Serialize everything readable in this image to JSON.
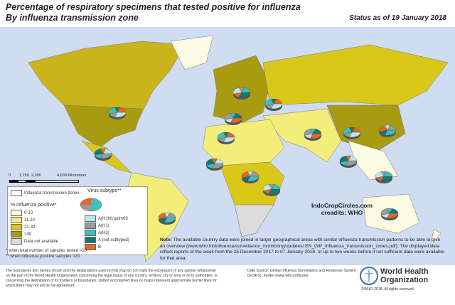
{
  "header": {
    "title_line1": "Percentage of respiratory specimens that tested positive for influenza",
    "title_line2": "By influenza transmission zone",
    "status": "Status as of 19 January 2018"
  },
  "scale": {
    "labels": [
      "0",
      "1,150",
      "2,300",
      "4,600 Kilometers"
    ]
  },
  "legend": {
    "zone_label": "Influenza transmission zones",
    "positive_title": "% influenza positive*",
    "classes": [
      {
        "label": "0-10",
        "color": "#fbfbe3"
      },
      {
        "label": "11-20",
        "color": "#f3ee7a"
      },
      {
        "label": "21-30",
        "color": "#d9c81a"
      },
      {
        "label": ">30",
        "color": "#a99b10"
      },
      {
        "label": "Data not available",
        "color": "#dcdcdc"
      }
    ],
    "subtype_title": "Virus subtype**",
    "subtypes": [
      {
        "label": "A(H1N1)pdm09",
        "color": "#b8e8ec"
      },
      {
        "label": "A(H1)",
        "color": "#9a9a9a"
      },
      {
        "label": "A(H3)",
        "color": "#3fc0c0"
      },
      {
        "label": "A (not subtyped)",
        "color": "#137a72"
      },
      {
        "label": "B",
        "color": "#e0682a"
      }
    ]
  },
  "footnotes": [
    "* when total number of samples tested >10",
    "** when influenza positive samples >20"
  ],
  "credit": {
    "line1": "IndoCropCircles.com",
    "line2": "creadits: WHO"
  },
  "note": {
    "label": "Note:",
    "text": "The available country data were joined in larger geographical areas with similar influenza transmission patterns to be able to give an overview (www.who.int/influenza/surveillance_monitoring/updates/ EN_GIP_Influenza_transmission_zones.pdf). The displayed data reflect reports of the week from the 25 December 2017 to 07 January 2018, or up to two weeks before if not sufficient data were available for that area."
  },
  "disclaimer": "The boundaries and names shown and the designations used on this map do not imply the expression of any opinion whatsoever on the part of the World Health Organization concerning the legal status of any country, territory, city or area or of its authorities, or concerning the delimitation of its frontiers or boundaries. Dotted and dashed lines on maps represent approximate border lines for which there may not yet be full agreement.",
  "source": "Data Source: Global Influenza Surveillance and Response System (GISRS), FluNet (www.who.int/flunet)",
  "who": {
    "name_line1": "World Health",
    "name_line2": "Organization",
    "copyright": "©WHO 2018. All rights reserved."
  },
  "colors": {
    "ocean": "#cfdcf2"
  }
}
